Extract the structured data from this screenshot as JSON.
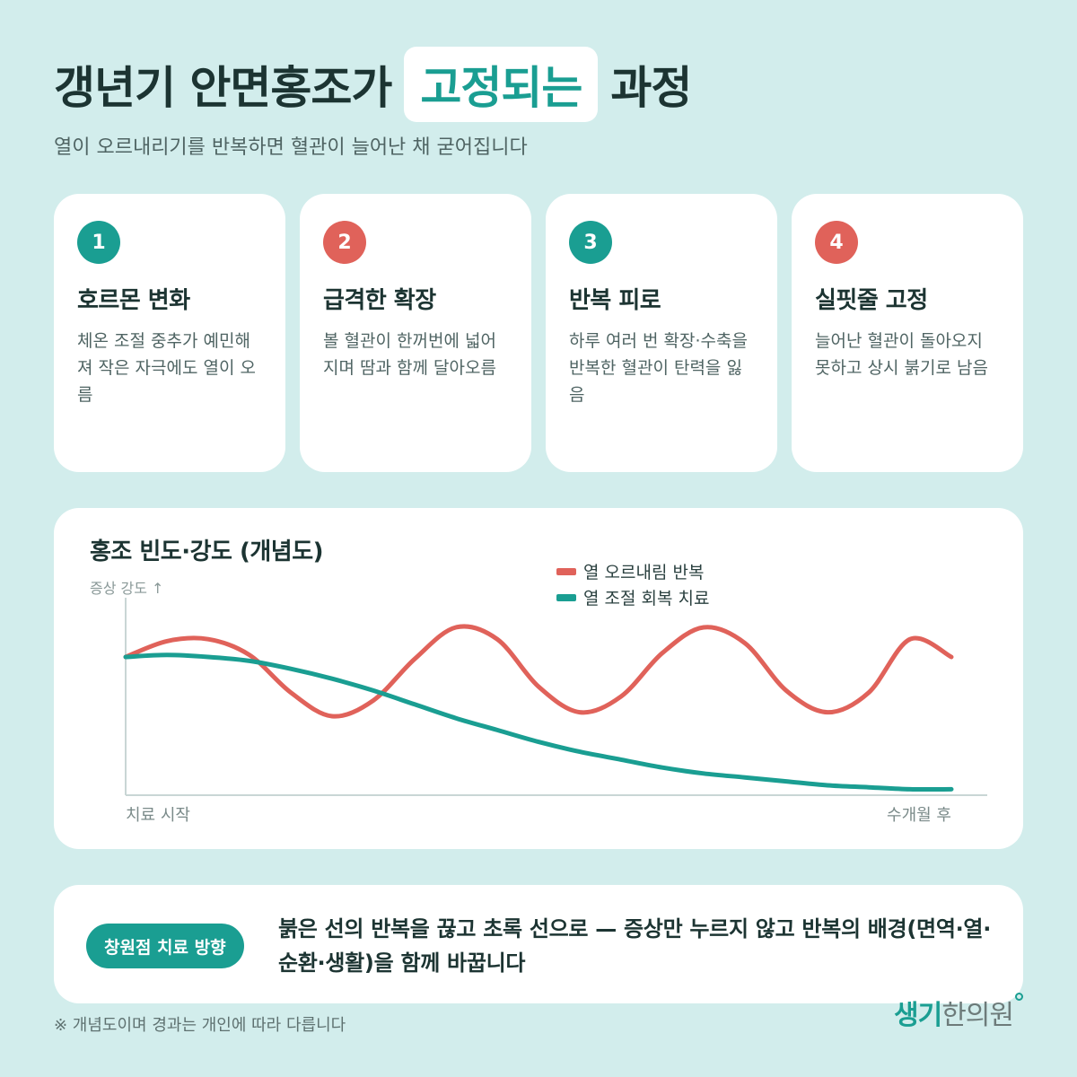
{
  "header": {
    "title_before": "갱년기 안면홍조가",
    "title_highlight": "고정되는",
    "title_after": "과정",
    "subtitle": "열이 오르내리기를 반복하면 혈관이 늘어난 채 굳어집니다"
  },
  "steps": [
    {
      "number": "1",
      "title": "호르몬 변화",
      "desc": "체온 조절 중추가 예민해져 작은 자극에도 열이 오름",
      "color": "#1a9e92"
    },
    {
      "number": "2",
      "title": "급격한 확장",
      "desc": "볼 혈관이 한꺼번에 넓어지며 땀과 함께 달아오름",
      "color": "#e0625a"
    },
    {
      "number": "3",
      "title": "반복 피로",
      "desc": "하루 여러 번 확장·수축을 반복한 혈관이 탄력을 잃음",
      "color": "#1a9e92"
    },
    {
      "number": "4",
      "title": "실핏줄 고정",
      "desc": "늘어난 혈관이 돌아오지 못하고 상시 붉기로 남음",
      "color": "#e0625a"
    }
  ],
  "chart": {
    "title": "홍조 빈도·강도 (개념도)",
    "y_label": "증상 강도 ↑",
    "x_start_label": "치료 시작",
    "x_end_label": "수개월 후"
  },
  "chart_data": {
    "type": "line",
    "title": "홍조 빈도·강도 (개념도)",
    "ylabel": "증상 강도 ↑",
    "x_tick_labels": [
      "치료 시작",
      "수개월 후"
    ],
    "xlim": [
      0,
      1
    ],
    "ylim": [
      0,
      1
    ],
    "legend_position": "top-right",
    "grid": false,
    "series": [
      {
        "name": "열 오르내림 반복",
        "color": "#e0625a",
        "x": [
          0,
          0.05,
          0.1,
          0.15,
          0.2,
          0.25,
          0.3,
          0.35,
          0.4,
          0.45,
          0.5,
          0.55,
          0.6,
          0.65,
          0.7,
          0.75,
          0.8,
          0.85,
          0.9,
          0.95,
          1.0
        ],
        "y": [
          0.7,
          0.78,
          0.79,
          0.71,
          0.52,
          0.4,
          0.48,
          0.69,
          0.85,
          0.79,
          0.55,
          0.42,
          0.5,
          0.72,
          0.85,
          0.77,
          0.53,
          0.42,
          0.52,
          0.79,
          0.7
        ]
      },
      {
        "name": "열 조절 회복 치료",
        "color": "#1a9e92",
        "x": [
          0,
          0.05,
          0.1,
          0.15,
          0.2,
          0.25,
          0.3,
          0.35,
          0.4,
          0.45,
          0.5,
          0.55,
          0.6,
          0.65,
          0.7,
          0.75,
          0.8,
          0.85,
          0.9,
          0.95,
          1.0
        ],
        "y": [
          0.7,
          0.71,
          0.7,
          0.68,
          0.64,
          0.59,
          0.53,
          0.46,
          0.39,
          0.33,
          0.27,
          0.22,
          0.18,
          0.14,
          0.11,
          0.09,
          0.07,
          0.05,
          0.04,
          0.03,
          0.03
        ]
      }
    ]
  },
  "direction": {
    "pill": "창원점 치료 방향",
    "text": "붉은 선의 반복을 끊고 초록 선으로 — 증상만 누르지 않고 반복의 배경(면역·열·순환·생활)을 함께 바꿉니다"
  },
  "footnote": "※ 개념도이며 경과는 개인에 따라 다릅니다",
  "logo": {
    "part1": "생기",
    "part2": "한의원"
  },
  "colors": {
    "background": "#d2edec",
    "accent_teal": "#1a9e92",
    "accent_red": "#e0625a",
    "text_dark": "#1c3432"
  }
}
